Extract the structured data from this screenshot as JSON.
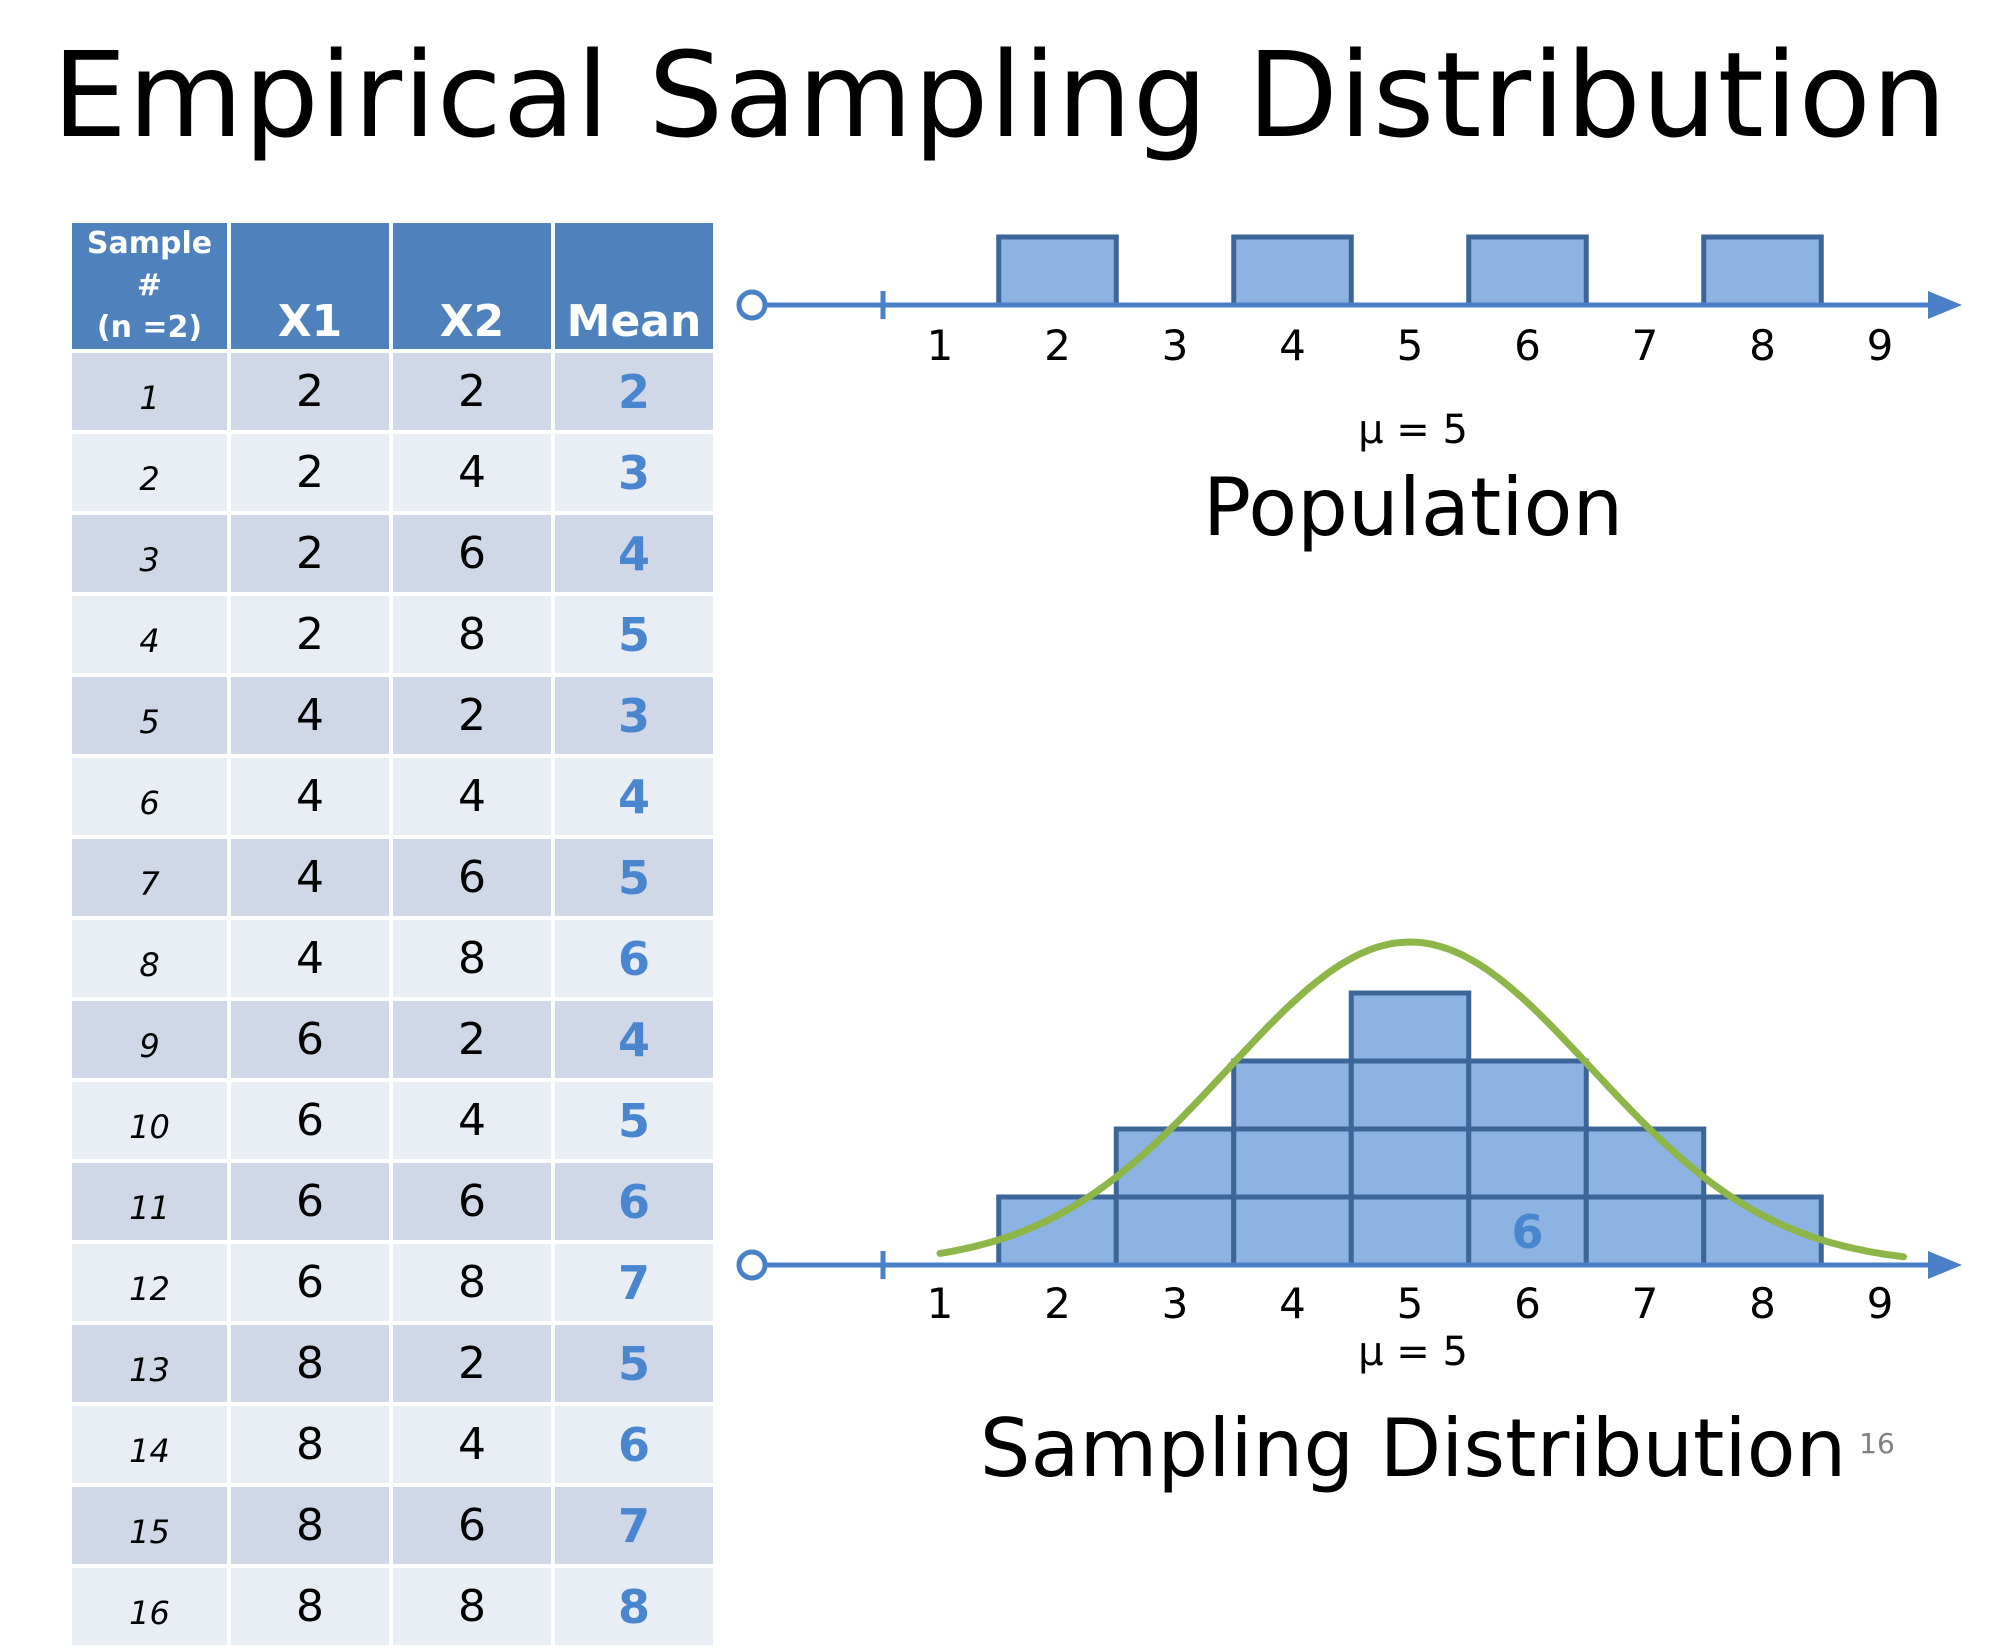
{
  "title": "Empirical Sampling Distribution",
  "table": {
    "headers": [
      "Sample #\n(n =2)",
      "X1",
      "X2",
      "Mean"
    ],
    "rows": [
      [
        "1",
        "2",
        "2",
        "2"
      ],
      [
        "2",
        "2",
        "4",
        "3"
      ],
      [
        "3",
        "2",
        "6",
        "4"
      ],
      [
        "4",
        "2",
        "8",
        "5"
      ],
      [
        "5",
        "4",
        "2",
        "3"
      ],
      [
        "6",
        "4",
        "4",
        "4"
      ],
      [
        "7",
        "4",
        "6",
        "5"
      ],
      [
        "8",
        "4",
        "8",
        "6"
      ],
      [
        "9",
        "6",
        "2",
        "4"
      ],
      [
        "10",
        "6",
        "4",
        "5"
      ],
      [
        "11",
        "6",
        "6",
        "6"
      ],
      [
        "12",
        "6",
        "8",
        "7"
      ],
      [
        "13",
        "8",
        "2",
        "5"
      ],
      [
        "14",
        "8",
        "4",
        "6"
      ],
      [
        "15",
        "8",
        "6",
        "7"
      ],
      [
        "16",
        "8",
        "8",
        "8"
      ]
    ]
  },
  "population": {
    "axis_ticks": [
      "1",
      "2",
      "3",
      "4",
      "5",
      "6",
      "7",
      "8",
      "9"
    ],
    "values": [
      2,
      4,
      6,
      8
    ],
    "mu_label": "μ = 5",
    "label": "Population"
  },
  "sampling": {
    "axis_ticks": [
      "1",
      "2",
      "3",
      "4",
      "5",
      "6",
      "7",
      "8",
      "9"
    ],
    "frequencies": [
      {
        "value": 2,
        "count": 1
      },
      {
        "value": 3,
        "count": 2
      },
      {
        "value": 4,
        "count": 3
      },
      {
        "value": 5,
        "count": 4
      },
      {
        "value": 6,
        "count": 3
      },
      {
        "value": 7,
        "count": 2
      },
      {
        "value": 8,
        "count": 1
      }
    ],
    "annotation": "6",
    "mu_label": "μ = 5",
    "label": "Sampling Distribution"
  },
  "slide_number": "16",
  "colors": {
    "header_fill": "#4f81bd",
    "row_odd": "#d0d8e8",
    "row_even": "#e9edf4",
    "mean_text": "#4a86d0",
    "box_fill": "#8db3e2",
    "box_stroke": "#3c6598",
    "axis": "#4a80c8",
    "curve": "#8eb548"
  }
}
